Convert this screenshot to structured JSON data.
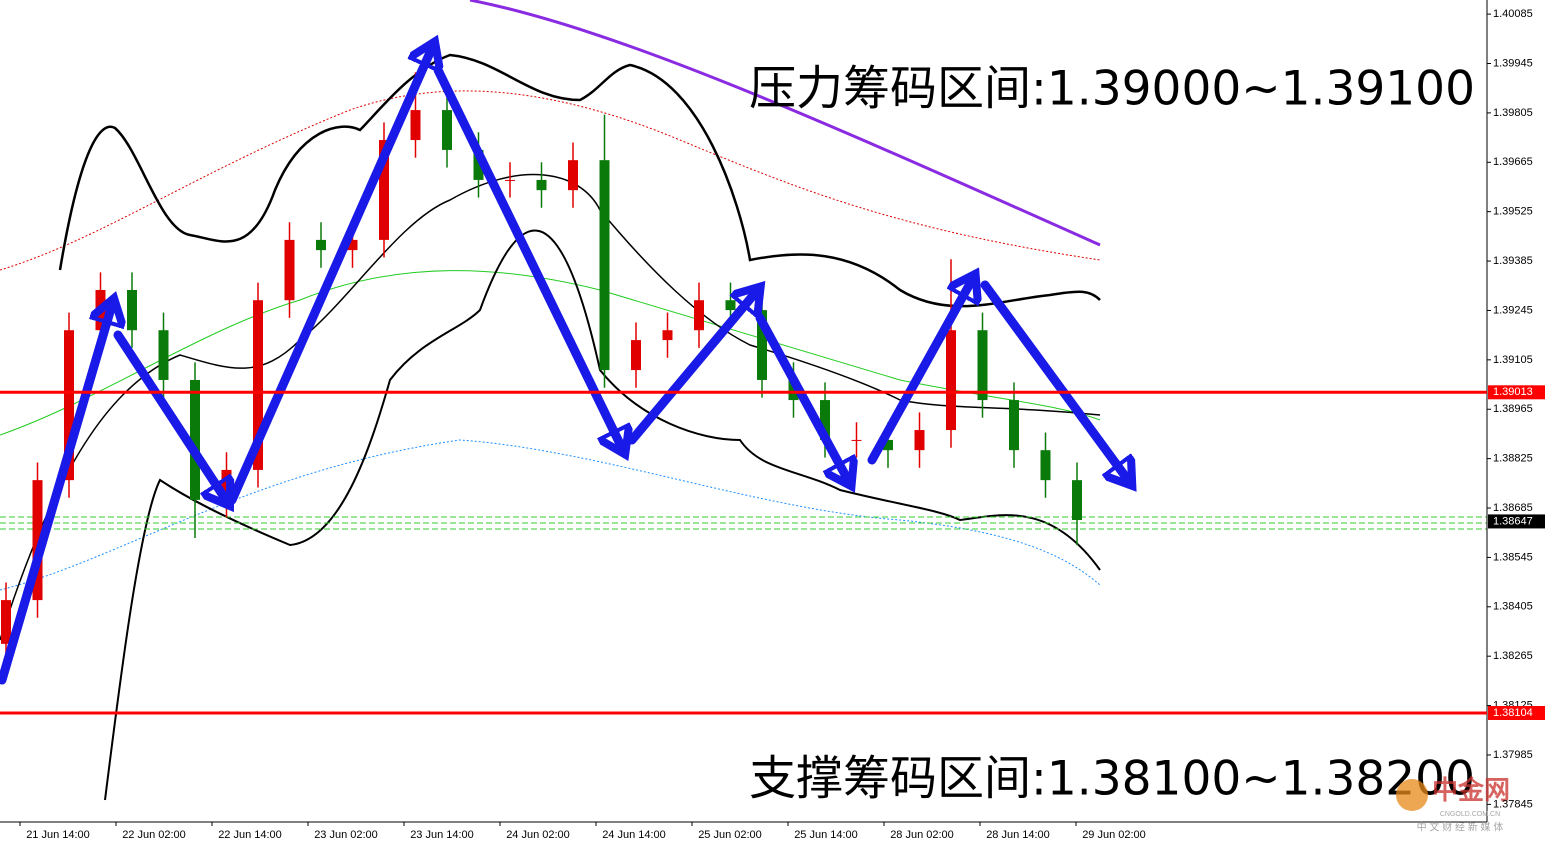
{
  "chart_data": {
    "type": "candlestick",
    "categories": [
      "21 Jun 14:00",
      "22 Jun 02:00",
      "22 Jun 14:00",
      "23 Jun 02:00",
      "23 Jun 14:00",
      "24 Jun 02:00",
      "24 Jun 14:00",
      "25 Jun 02:00",
      "25 Jun 14:00",
      "28 Jun 02:00",
      "28 Jun 14:00",
      "29 Jun 02:00"
    ],
    "open": [
      1.383,
      1.38424,
      1.38764,
      1.39189,
      1.39303,
      1.39189,
      1.39048,
      1.38708,
      1.38793,
      1.39274,
      1.39445,
      1.39416,
      1.39445,
      1.39728,
      1.39813,
      1.397,
      1.39615,
      1.39615,
      1.39586,
      1.39671,
      1.39076,
      1.39161,
      1.39189,
      1.39274,
      1.39246,
      1.39048,
      1.38991,
      1.38878,
      1.38878,
      1.38849,
      1.38906,
      1.39189,
      1.38991,
      1.38849,
      1.38764
    ],
    "high": [
      1.38474,
      1.38814,
      1.39239,
      1.39353,
      1.39353,
      1.39239,
      1.39098,
      1.38843,
      1.39324,
      1.39495,
      1.39495,
      1.39495,
      1.39778,
      1.3992,
      1.39863,
      1.3975,
      1.39665,
      1.39665,
      1.39721,
      1.398,
      1.39211,
      1.39239,
      1.39324,
      1.39324,
      1.39296,
      1.39098,
      1.39041,
      1.38928,
      1.38928,
      1.38956,
      1.3939,
      1.39239,
      1.39041,
      1.38899,
      1.38814
    ],
    "low": [
      1.3825,
      1.38374,
      1.38714,
      1.39139,
      1.39139,
      1.38998,
      1.386,
      1.38658,
      1.38743,
      1.39224,
      1.39366,
      1.39366,
      1.39395,
      1.39678,
      1.3965,
      1.39565,
      1.39565,
      1.39536,
      1.39536,
      1.39026,
      1.39026,
      1.39111,
      1.39139,
      1.39196,
      1.38998,
      1.38941,
      1.38828,
      1.38828,
      1.38799,
      1.38799,
      1.38856,
      1.38941,
      1.38799,
      1.38714,
      1.3858
    ],
    "close": [
      1.38424,
      1.38764,
      1.39189,
      1.39303,
      1.39189,
      1.39048,
      1.38708,
      1.38793,
      1.39274,
      1.39445,
      1.39416,
      1.39445,
      1.39728,
      1.39813,
      1.397,
      1.39615,
      1.39615,
      1.39586,
      1.39671,
      1.39076,
      1.39161,
      1.39189,
      1.39274,
      1.39246,
      1.39048,
      1.38991,
      1.38878,
      1.38878,
      1.38849,
      1.38906,
      1.39189,
      1.38991,
      1.38849,
      1.38764,
      1.38651
    ],
    "up_color": "#e00000",
    "down_color": "#0a7a0a",
    "ylim": [
      1.37795,
      1.40125
    ],
    "yticks": [
      1.40085,
      1.39945,
      1.39805,
      1.39665,
      1.39525,
      1.39385,
      1.39245,
      1.39105,
      1.38965,
      1.38825,
      1.38685,
      1.38545,
      1.38405,
      1.38265,
      1.38125,
      1.37985,
      1.37845
    ],
    "levels": [
      {
        "value": 1.39013,
        "color": "#ff0000"
      },
      {
        "value": 1.38104,
        "color": "#ff0000"
      }
    ],
    "current_price": 1.38647,
    "annotations": [
      "压力筹码区间:1.39000~1.39100",
      "支撑筹码区间:1.38100~1.38200"
    ],
    "watermark": {
      "logo": "中金网",
      "site": "CNGOLD.COM.CN",
      "slogan": "中 文 财 经 新 媒 体"
    }
  }
}
